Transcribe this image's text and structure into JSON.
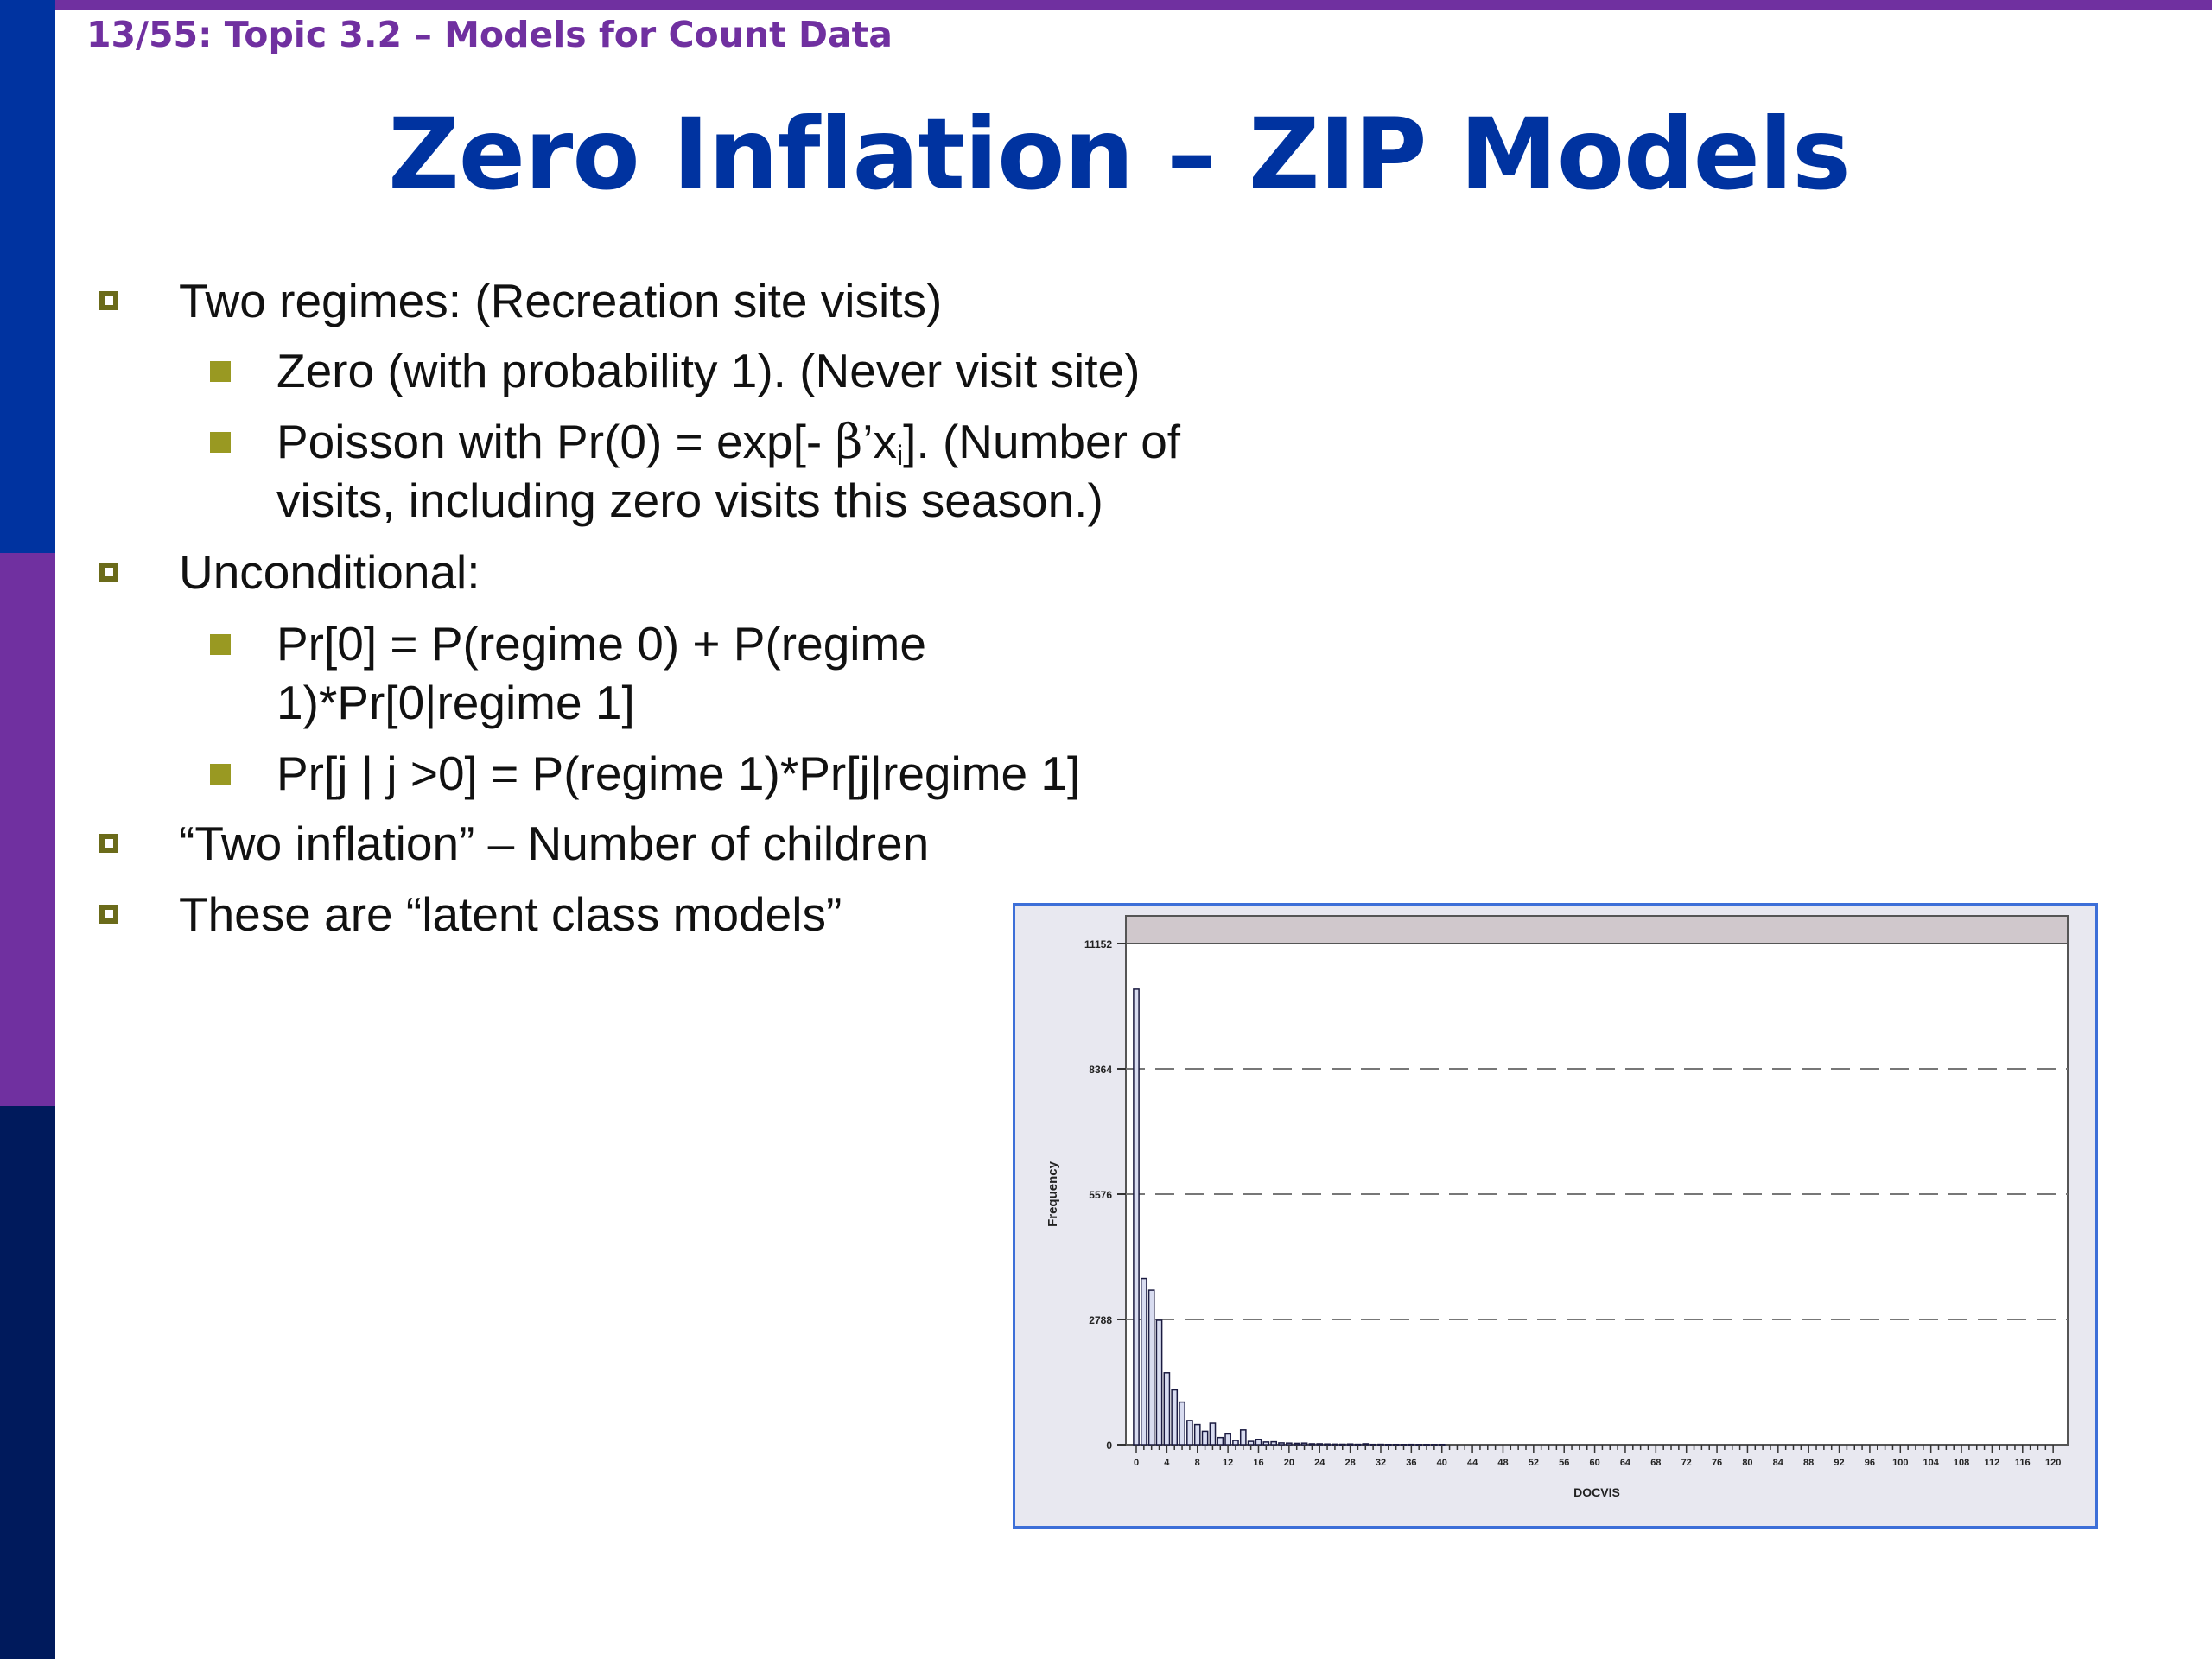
{
  "header": {
    "topic": "13/55: Topic 3.2 – Models for Count Data"
  },
  "slide": {
    "title": "Zero Inflation – ZIP Models",
    "bullets": {
      "b1": "Two regimes: (Recreation site visits)",
      "b1_1": "Zero (with probability 1). (Never visit site)",
      "b1_2_pre": "Poisson with Pr(0) = exp[- ",
      "b1_2_beta": "β",
      "b1_2_mid": "’x",
      "b1_2_sub": "i",
      "b1_2_post": "]. (Number of",
      "b1_2_line2": "visits, including zero visits this season.)",
      "b2": "Unconditional:",
      "b2_1_line1": "Pr[0] = P(regime 0) + P(regime",
      "b2_1_line2": "1)*Pr[0|regime 1]",
      "b2_2": "Pr[j | j >0] = P(regime 1)*Pr[j|regime 1]",
      "b3": "“Two inflation” – Number of children",
      "b4": "These are “latent class models”"
    }
  },
  "colors": {
    "topbar": "#7030a0",
    "sidebar_top": "#0033a0",
    "sidebar_mid": "#7030a0",
    "sidebar_bottom": "#001a5c",
    "title": "#0033a0",
    "topic": "#7030a0",
    "bullet_outline": "#6b6b1a",
    "bullet_fill": "#999922",
    "chart_frame": "#3d6fd8",
    "bar_fill": "#d8dcf0",
    "bar_stroke": "#1a1a40"
  },
  "chart_data": {
    "type": "bar",
    "xlabel": "DOCVIS",
    "ylabel": "Frequency",
    "yticks": [
      0,
      2788,
      5576,
      8364,
      11152
    ],
    "ylim": [
      0,
      11152
    ],
    "xlim": [
      0,
      121
    ],
    "xticks": [
      0,
      4,
      8,
      12,
      16,
      20,
      24,
      28,
      32,
      36,
      40,
      44,
      48,
      52,
      56,
      60,
      64,
      68,
      72,
      76,
      80,
      84,
      88,
      92,
      96,
      100,
      104,
      108,
      112,
      116,
      120
    ],
    "grid": "horizontal dashed",
    "x": [
      0,
      1,
      2,
      3,
      4,
      5,
      6,
      7,
      8,
      9,
      10,
      11,
      12,
      13,
      14,
      15,
      16,
      17,
      18,
      19,
      20,
      21,
      22,
      23,
      24,
      25,
      26,
      27,
      28,
      29,
      30,
      31,
      32,
      33,
      34,
      35,
      36,
      37,
      38,
      39,
      40
    ],
    "values": [
      10135,
      3700,
      3440,
      2770,
      1600,
      1220,
      950,
      540,
      450,
      300,
      480,
      160,
      240,
      95,
      330,
      75,
      120,
      60,
      65,
      40,
      35,
      30,
      35,
      20,
      20,
      15,
      12,
      10,
      15,
      8,
      20,
      6,
      8,
      5,
      5,
      4,
      6,
      3,
      4,
      3,
      5
    ]
  }
}
